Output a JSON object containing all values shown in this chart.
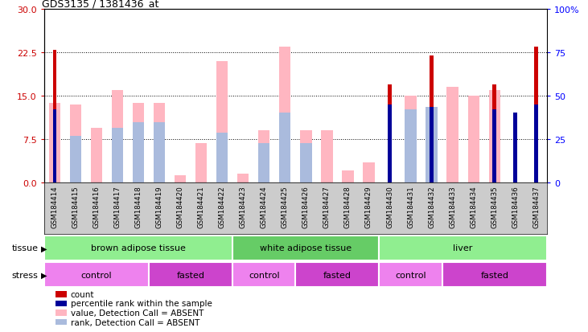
{
  "title": "GDS3135 / 1381436_at",
  "samples": [
    "GSM184414",
    "GSM184415",
    "GSM184416",
    "GSM184417",
    "GSM184418",
    "GSM184419",
    "GSM184420",
    "GSM184421",
    "GSM184422",
    "GSM184423",
    "GSM184424",
    "GSM184425",
    "GSM184426",
    "GSM184427",
    "GSM184428",
    "GSM184429",
    "GSM184430",
    "GSM184431",
    "GSM184432",
    "GSM184433",
    "GSM184434",
    "GSM184435",
    "GSM184436",
    "GSM184437"
  ],
  "value_absent": [
    13.8,
    13.5,
    9.5,
    16.0,
    13.8,
    13.8,
    1.2,
    6.8,
    21.0,
    1.5,
    9.0,
    23.5,
    9.0,
    9.0,
    2.0,
    3.5,
    null,
    15.0,
    null,
    16.5,
    15.0,
    16.0,
    null,
    null
  ],
  "rank_absent": [
    null,
    27.0,
    null,
    31.5,
    34.5,
    34.5,
    null,
    null,
    28.5,
    null,
    22.5,
    40.5,
    22.5,
    null,
    null,
    null,
    null,
    42.0,
    43.5,
    null,
    null,
    null,
    null,
    null
  ],
  "count": [
    23.0,
    null,
    null,
    null,
    null,
    null,
    null,
    null,
    null,
    null,
    null,
    null,
    null,
    null,
    null,
    null,
    17.0,
    null,
    22.0,
    null,
    null,
    17.0,
    null,
    23.5
  ],
  "percentile": [
    42.0,
    null,
    null,
    null,
    null,
    null,
    null,
    null,
    null,
    null,
    null,
    null,
    null,
    null,
    null,
    null,
    45.0,
    null,
    43.5,
    null,
    null,
    42.0,
    40.5,
    45.0
  ],
  "ylim_left": [
    0,
    30
  ],
  "ylim_right": [
    0,
    100
  ],
  "yticks_left": [
    0,
    7.5,
    15,
    22.5,
    30
  ],
  "yticks_right": [
    0,
    25,
    50,
    75,
    100
  ],
  "tissue_spans": [
    {
      "label": "brown adipose tissue",
      "start": 0,
      "end": 9,
      "color": "#90EE90"
    },
    {
      "label": "white adipose tissue",
      "start": 9,
      "end": 16,
      "color": "#66CC66"
    },
    {
      "label": "liver",
      "start": 16,
      "end": 24,
      "color": "#90EE90"
    }
  ],
  "stress_spans": [
    {
      "label": "control",
      "start": 0,
      "end": 5,
      "color": "#EE82EE"
    },
    {
      "label": "fasted",
      "start": 5,
      "end": 9,
      "color": "#CC44CC"
    },
    {
      "label": "control",
      "start": 9,
      "end": 12,
      "color": "#EE82EE"
    },
    {
      "label": "fasted",
      "start": 12,
      "end": 16,
      "color": "#CC44CC"
    },
    {
      "label": "control",
      "start": 16,
      "end": 19,
      "color": "#EE82EE"
    },
    {
      "label": "fasted",
      "start": 19,
      "end": 24,
      "color": "#CC44CC"
    }
  ],
  "color_value_absent": "#FFB6C1",
  "color_rank_absent": "#AABBDD",
  "color_count": "#CC0000",
  "color_percentile": "#000099",
  "bg_color": "#FFFFFF",
  "xticklabel_bg": "#CCCCCC"
}
